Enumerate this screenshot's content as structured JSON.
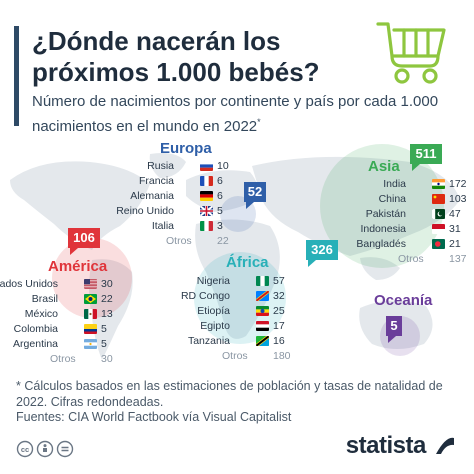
{
  "header": {
    "title": "¿Dónde nacerán los próximos 1.000 bebés?",
    "subtitle": "Número de nacimientos por continente y país por cada 1.000 nacimientos en el mundo en 2022",
    "subtitle_mark": "*"
  },
  "colors": {
    "europa": "#2f5fa8",
    "asia": "#3aaa55",
    "africa": "#28b0b8",
    "america": "#e0343a",
    "oceania": "#6a3d9a",
    "map": "#e4e8ec"
  },
  "chart_data": {
    "type": "table",
    "regions": [
      {
        "key": "europa",
        "name": "Europa",
        "total": "52",
        "rows": [
          {
            "country": "Rusia",
            "value": "10",
            "flag": "ru"
          },
          {
            "country": "Francia",
            "value": "6",
            "flag": "fr"
          },
          {
            "country": "Alemania",
            "value": "6",
            "flag": "de"
          },
          {
            "country": "Reino Unido",
            "value": "5",
            "flag": "gb"
          },
          {
            "country": "Italia",
            "value": "3",
            "flag": "it"
          }
        ],
        "otros_label": "Otros",
        "otros_value": "22"
      },
      {
        "key": "asia",
        "name": "Asia",
        "total": "511",
        "rows": [
          {
            "country": "India",
            "value": "172",
            "flag": "in"
          },
          {
            "country": "China",
            "value": "103",
            "flag": "cn"
          },
          {
            "country": "Pakistán",
            "value": "47",
            "flag": "pk"
          },
          {
            "country": "Indonesia",
            "value": "31",
            "flag": "id"
          },
          {
            "country": "Bangladés",
            "value": "21",
            "flag": "bd"
          }
        ],
        "otros_label": "Otros",
        "otros_value": "137"
      },
      {
        "key": "africa",
        "name": "África",
        "total": "326",
        "rows": [
          {
            "country": "Nigeria",
            "value": "57",
            "flag": "ng"
          },
          {
            "country": "RD Congo",
            "value": "32",
            "flag": "cd"
          },
          {
            "country": "Etiopía",
            "value": "25",
            "flag": "et"
          },
          {
            "country": "Egipto",
            "value": "17",
            "flag": "eg"
          },
          {
            "country": "Tanzania",
            "value": "16",
            "flag": "tz"
          }
        ],
        "otros_label": "Otros",
        "otros_value": "180"
      },
      {
        "key": "america",
        "name": "América",
        "total": "106",
        "rows": [
          {
            "country": "Estados Unidos",
            "value": "30",
            "flag": "us"
          },
          {
            "country": "Brasil",
            "value": "22",
            "flag": "br"
          },
          {
            "country": "México",
            "value": "13",
            "flag": "mx"
          },
          {
            "country": "Colombia",
            "value": "5",
            "flag": "co"
          },
          {
            "country": "Argentina",
            "value": "5",
            "flag": "ar"
          }
        ],
        "otros_label": "Otros",
        "otros_value": "30"
      },
      {
        "key": "oceania",
        "name": "Oceanía",
        "total": "5",
        "rows": [],
        "otros_label": "",
        "otros_value": ""
      }
    ]
  },
  "footer": {
    "footnote": "* Cálculos basados en las estimaciones de población y tasas de natalidad de 2022. Cifras redondeadas.",
    "sources": "Fuentes: CIA World Factbook vía Visual Capitalist",
    "logo": "statista",
    "license_icons": [
      "cc-icon",
      "by-icon",
      "equal-icon"
    ]
  }
}
